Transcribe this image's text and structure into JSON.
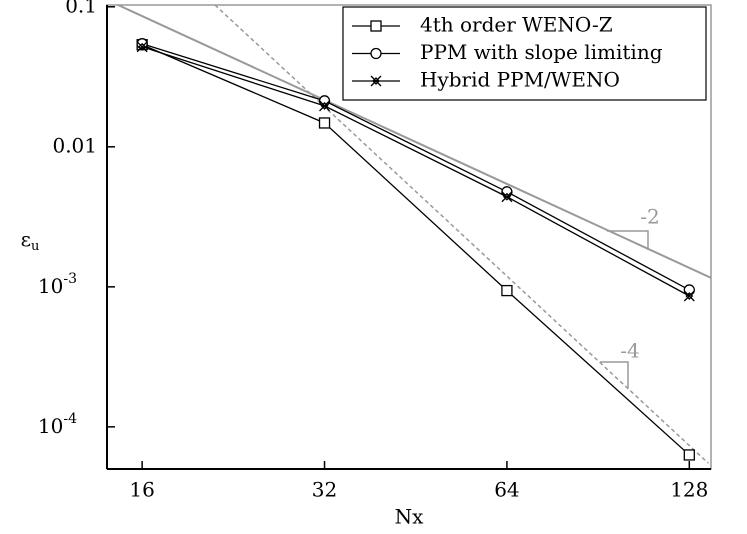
{
  "chart_data": {
    "type": "line",
    "xlabel": "Nx",
    "ylabel": "ε",
    "ylabel_subscript": "u",
    "x": [
      16,
      32,
      64,
      128
    ],
    "xlim": [
      14,
      139
    ],
    "ylim": [
      5e-05,
      0.103
    ],
    "xscale": "log",
    "yscale": "log",
    "xticks": [
      16,
      32,
      64,
      128
    ],
    "yticks": [
      0.1,
      0.01,
      {
        "value": 0.001,
        "label": "10",
        "exponent": "-3"
      },
      {
        "value": 0.0001,
        "label": "10",
        "exponent": "-4"
      }
    ],
    "legend": "upper right",
    "series": [
      {
        "name": "4th order WENO-Z",
        "color": "#000000",
        "marker": "square",
        "values": [
          0.0536,
          0.0148,
          0.00094,
          6.3e-05
        ]
      },
      {
        "name": "PPM with slope limiting",
        "color": "#000000",
        "marker": "circle",
        "values": [
          0.0545,
          0.0213,
          0.00477,
          0.00095
        ]
      },
      {
        "name": "Hybrid PPM/WENO",
        "color": "#000000",
        "marker": "x",
        "values": [
          0.0518,
          0.0196,
          0.0044,
          0.00086
        ]
      }
    ],
    "reference_lines": [
      {
        "label": "-2",
        "color": "#999999",
        "style": "solid",
        "x": [
          14.6,
          139
        ],
        "y": [
          0.103,
          0.00116
        ]
      },
      {
        "label": "-4",
        "color": "#999999",
        "style": "dashed",
        "x": [
          21.1,
          137.6
        ],
        "y": [
          0.103,
          5.5e-05
        ]
      }
    ]
  }
}
